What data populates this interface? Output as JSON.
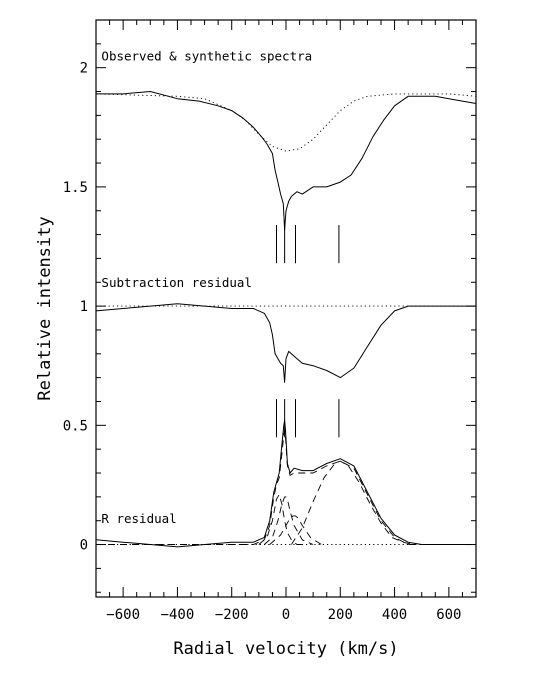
{
  "chart_data": {
    "type": "line",
    "xlabel": "Radial velocity (km/s)",
    "ylabel": "Relative intensity",
    "xlim": [
      -700,
      700
    ],
    "ylim": [
      -0.22,
      2.2
    ],
    "x_ticks": [
      -600,
      -400,
      -200,
      0,
      200,
      400,
      600
    ],
    "x_tick_labels": [
      "−600",
      "−400",
      "−200",
      "0",
      "200",
      "400",
      "600"
    ],
    "y_ticks": [
      0,
      0.5,
      1,
      1.5,
      2
    ],
    "y_tick_labels": [
      "0",
      "0.5",
      "1",
      "1.5",
      "2"
    ],
    "grid": false,
    "panel_labels": [
      {
        "text": "Observed & synthetic spectra",
        "x": -680,
        "y": 2.03
      },
      {
        "text": "Subtraction residual",
        "x": -680,
        "y": 1.08
      },
      {
        "text": "R residual",
        "x": -680,
        "y": 0.09
      }
    ],
    "marker_velocities": [
      -35,
      -5,
      35,
      195
    ],
    "marker_groups": [
      {
        "y_low": 1.18,
        "y_high": 1.34
      },
      {
        "y_low": 0.45,
        "y_high": 0.61
      }
    ],
    "series": [
      {
        "style": "solid",
        "x": [
          -700,
          -600,
          -500,
          -400,
          -320,
          -250,
          -200,
          -160,
          -120,
          -90,
          -70,
          -60,
          -50,
          -40,
          -30,
          -20,
          -10,
          -5,
          0,
          10,
          20,
          40,
          60,
          100,
          150,
          200,
          240,
          280,
          320,
          360,
          400,
          450,
          500,
          550,
          600,
          650,
          700
        ],
        "y": [
          1.89,
          1.89,
          1.9,
          1.87,
          1.86,
          1.84,
          1.82,
          1.79,
          1.75,
          1.71,
          1.68,
          1.66,
          1.64,
          1.57,
          1.52,
          1.47,
          1.43,
          1.32,
          1.4,
          1.44,
          1.46,
          1.48,
          1.47,
          1.5,
          1.5,
          1.52,
          1.55,
          1.62,
          1.71,
          1.78,
          1.84,
          1.88,
          1.88,
          1.88,
          1.87,
          1.86,
          1.85
        ]
      },
      {
        "style": "dotted",
        "x": [
          -700,
          -400,
          -300,
          -200,
          -150,
          -100,
          -50,
          0,
          50,
          100,
          150,
          200,
          250,
          300,
          400,
          500,
          600,
          700
        ],
        "y": [
          1.89,
          1.88,
          1.87,
          1.82,
          1.78,
          1.72,
          1.67,
          1.65,
          1.66,
          1.7,
          1.76,
          1.82,
          1.86,
          1.88,
          1.89,
          1.89,
          1.89,
          1.88
        ]
      },
      {
        "style": "solid",
        "x": [
          -700,
          -600,
          -500,
          -400,
          -300,
          -200,
          -120,
          -80,
          -60,
          -50,
          -40,
          -30,
          -20,
          -10,
          -5,
          0,
          10,
          20,
          40,
          60,
          100,
          150,
          200,
          250,
          300,
          350,
          400,
          450,
          500,
          600,
          700
        ],
        "y": [
          0.98,
          0.99,
          1.0,
          1.01,
          1.0,
          0.99,
          0.99,
          0.97,
          0.93,
          0.88,
          0.8,
          0.78,
          0.76,
          0.75,
          0.68,
          0.78,
          0.81,
          0.8,
          0.78,
          0.76,
          0.75,
          0.73,
          0.7,
          0.74,
          0.83,
          0.92,
          0.98,
          1.0,
          1.0,
          1.0,
          1.0
        ]
      },
      {
        "style": "dotted",
        "x": [
          -700,
          700
        ],
        "y": [
          1.0,
          1.0
        ]
      },
      {
        "style": "solid",
        "x": [
          -700,
          -600,
          -500,
          -400,
          -300,
          -200,
          -120,
          -80,
          -60,
          -45,
          -35,
          -25,
          -15,
          -8,
          -5,
          -2,
          5,
          15,
          30,
          60,
          100,
          150,
          200,
          250,
          300,
          350,
          400,
          450,
          500,
          600,
          700
        ],
        "y": [
          0.02,
          0.01,
          0.0,
          -0.01,
          0.0,
          0.01,
          0.01,
          0.03,
          0.1,
          0.22,
          0.26,
          0.3,
          0.42,
          0.5,
          0.52,
          0.48,
          0.34,
          0.3,
          0.32,
          0.31,
          0.31,
          0.34,
          0.36,
          0.33,
          0.22,
          0.11,
          0.04,
          0.01,
          0.0,
          0.0,
          0.0
        ]
      },
      {
        "style": "dashed",
        "x": [
          -700,
          -600,
          -500,
          -400,
          -300,
          -200,
          -120,
          -80,
          -60,
          -45,
          -35,
          -25,
          -15,
          -8,
          -5,
          -2,
          5,
          15,
          30,
          60,
          100,
          150,
          200,
          250,
          300,
          350,
          400,
          450,
          500,
          600,
          700
        ],
        "y": [
          0.0,
          0.0,
          0.0,
          0.0,
          0.0,
          0.0,
          0.0,
          0.02,
          0.08,
          0.2,
          0.25,
          0.28,
          0.38,
          0.46,
          0.48,
          0.45,
          0.33,
          0.29,
          0.3,
          0.3,
          0.3,
          0.33,
          0.35,
          0.32,
          0.21,
          0.1,
          0.03,
          0.0,
          0.0,
          0.0,
          0.0
        ]
      },
      {
        "style": "dashed",
        "x": [
          -100,
          -70,
          -50,
          -35,
          -25,
          -15,
          -5,
          5,
          20,
          40,
          70
        ],
        "y": [
          0.0,
          0.03,
          0.1,
          0.19,
          0.21,
          0.17,
          0.1,
          0.05,
          0.02,
          0.0,
          0.0
        ]
      },
      {
        "style": "dashed",
        "x": [
          -80,
          -50,
          -30,
          -15,
          -5,
          0,
          5,
          15,
          30,
          60,
          100
        ],
        "y": [
          0.0,
          0.03,
          0.1,
          0.17,
          0.2,
          0.2,
          0.19,
          0.14,
          0.08,
          0.02,
          0.0
        ]
      },
      {
        "style": "dashed",
        "x": [
          -60,
          -20,
          10,
          25,
          35,
          45,
          60,
          90,
          130
        ],
        "y": [
          0.0,
          0.04,
          0.1,
          0.12,
          0.12,
          0.11,
          0.08,
          0.03,
          0.0
        ]
      },
      {
        "style": "dashed",
        "x": [
          20,
          60,
          100,
          140,
          180,
          200,
          230,
          270,
          310,
          350,
          390,
          430,
          470
        ],
        "y": [
          0.0,
          0.07,
          0.18,
          0.28,
          0.34,
          0.35,
          0.33,
          0.26,
          0.17,
          0.09,
          0.03,
          0.01,
          0.0
        ]
      },
      {
        "style": "dotted",
        "x": [
          -700,
          700
        ],
        "y": [
          0.0,
          0.0
        ]
      }
    ]
  }
}
